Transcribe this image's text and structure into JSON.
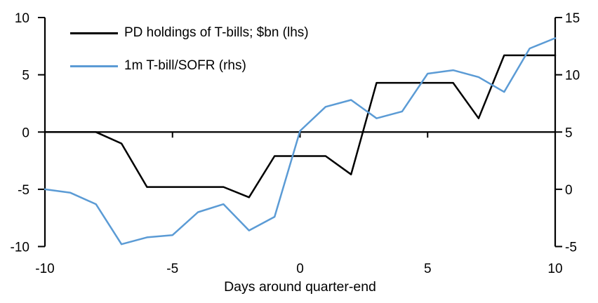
{
  "chart_data": {
    "type": "line",
    "title": "",
    "xlabel": "Days around quarter-end",
    "grid": false,
    "legend_position": "top-left",
    "x_range": [
      -10,
      10
    ],
    "x_ticks": [
      -10,
      -5,
      0,
      5,
      10
    ],
    "left_axis": {
      "min": -10,
      "max": 10,
      "ticks": [
        10,
        5,
        0,
        -5,
        -10
      ]
    },
    "right_axis": {
      "min": -5,
      "max": 15,
      "ticks": [
        15,
        10,
        5,
        0,
        -5
      ]
    },
    "x": [
      -10,
      -9,
      -8,
      -7,
      -6,
      -5,
      -4,
      -3,
      -2,
      -1,
      0,
      1,
      2,
      3,
      4,
      5,
      6,
      7,
      8,
      9,
      10
    ],
    "series": [
      {
        "name": "PD holdings of T-bills; $bn (lhs)",
        "axis": "left",
        "color": "#000000",
        "values": [
          0.0,
          0.0,
          0.0,
          -1.0,
          -4.8,
          -4.8,
          -4.8,
          -4.8,
          -5.7,
          -2.1,
          -2.1,
          -2.1,
          -3.7,
          4.3,
          4.3,
          4.3,
          4.3,
          1.2,
          6.7,
          6.7,
          6.7
        ]
      },
      {
        "name": "1m T-bill/SOFR (rhs)",
        "axis": "right",
        "color": "#5B9BD5",
        "values": [
          0.0,
          -0.3,
          -1.3,
          -4.8,
          -4.2,
          -4.0,
          -2.0,
          -1.3,
          -3.6,
          -2.4,
          5.1,
          7.2,
          7.8,
          6.2,
          6.8,
          10.1,
          10.4,
          9.8,
          8.5,
          12.3,
          13.2
        ]
      }
    ]
  },
  "colors": {
    "axis": "#000000",
    "background": "#FFFFFF",
    "series_black": "#000000",
    "series_blue": "#5B9BD5"
  }
}
